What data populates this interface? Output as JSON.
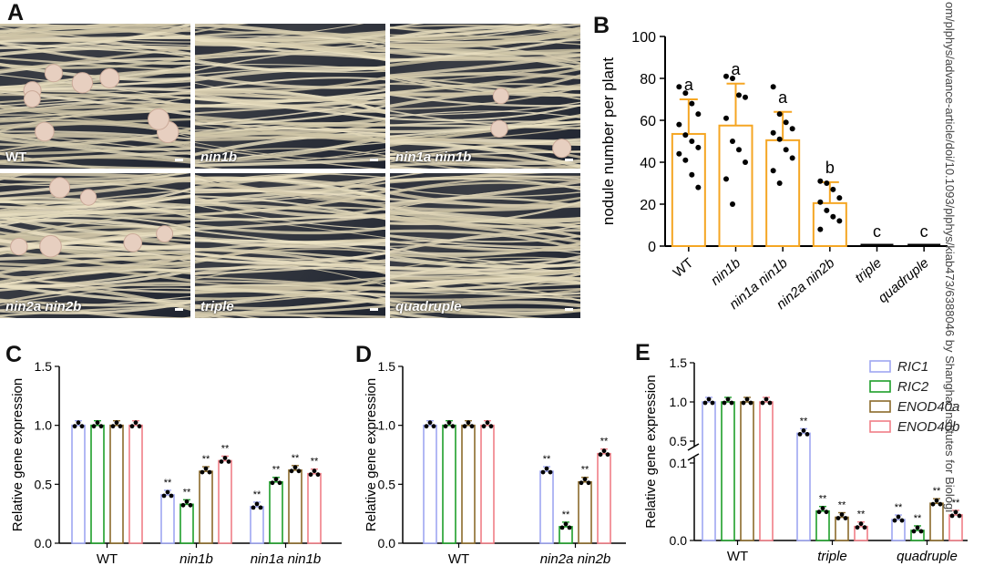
{
  "panels": {
    "A": "A",
    "B": "B",
    "C": "C",
    "D": "D",
    "E": "E"
  },
  "photos": [
    {
      "label": "WT",
      "italic": false
    },
    {
      "label": "nin1b",
      "italic": true
    },
    {
      "label": "nin1a nin1b",
      "italic": true
    },
    {
      "label": "nin2a nin2b",
      "italic": true
    },
    {
      "label": "triple",
      "italic": true
    },
    {
      "label": "quadruple",
      "italic": true
    }
  ],
  "watermark": "om/plphys/advance-article/doi/10.1093/plphys/kiab473/6388046 by Shanghai Institutes for Biologi",
  "chart_data": [
    {
      "id": "B",
      "type": "bar",
      "ylabel": "nodule number per plant",
      "ylim": [
        0,
        100
      ],
      "yticks": [
        0,
        20,
        40,
        60,
        80,
        100
      ],
      "categories": [
        "WT",
        "nin1b",
        "nin1a nin1b",
        "nin2a nin2b",
        "triple",
        "quadruple"
      ],
      "values": [
        53.5,
        57.5,
        50.5,
        20.5,
        0,
        0
      ],
      "errors": [
        16.5,
        20,
        13.5,
        10,
        0,
        0
      ],
      "letters": [
        "a",
        "a",
        "a",
        "b",
        "c",
        "c"
      ],
      "points": [
        [
          76,
          73,
          68,
          63,
          58,
          53,
          50,
          47,
          44,
          41,
          34,
          28
        ],
        [
          81,
          80,
          72,
          71,
          61,
          50,
          46,
          40,
          32,
          20
        ],
        [
          76,
          63,
          59,
          56,
          54,
          51,
          46,
          42,
          36,
          30
        ],
        [
          31,
          30,
          27,
          23,
          21,
          17,
          14,
          12,
          8
        ]
      ],
      "color": "#f5a623"
    },
    {
      "id": "C",
      "type": "bar",
      "ylabel": "Relative gene expression",
      "ylim": [
        0,
        1.5
      ],
      "yticks": [
        "0.0",
        "0.5",
        "1.0",
        "1.5"
      ],
      "groups": [
        "WT",
        "nin1b",
        "nin1a nin1b"
      ],
      "series": [
        {
          "name": "RIC1",
          "values": [
            1.0,
            0.41,
            0.31
          ]
        },
        {
          "name": "RIC2",
          "values": [
            1.0,
            0.33,
            0.52
          ]
        },
        {
          "name": "ENOD40a",
          "values": [
            1.0,
            0.61,
            0.62
          ]
        },
        {
          "name": "ENOD40b",
          "values": [
            1.0,
            0.7,
            0.59
          ]
        }
      ],
      "sig": [
        [
          "",
          "",
          "",
          ""
        ],
        [
          "**",
          "**",
          "**",
          "**"
        ],
        [
          "**",
          "**",
          "**",
          "**"
        ]
      ]
    },
    {
      "id": "D",
      "type": "bar",
      "ylabel": "Relative gene expression",
      "ylim": [
        0,
        1.5
      ],
      "yticks": [
        "0.0",
        "0.5",
        "1.0",
        "1.5"
      ],
      "groups": [
        "WT",
        "nin2a nin2b"
      ],
      "series": [
        {
          "name": "RIC1",
          "values": [
            1.0,
            0.61
          ]
        },
        {
          "name": "RIC2",
          "values": [
            1.0,
            0.14
          ]
        },
        {
          "name": "ENOD40a",
          "values": [
            1.0,
            0.52
          ]
        },
        {
          "name": "ENOD40b",
          "values": [
            1.0,
            0.76
          ]
        }
      ],
      "sig": [
        [
          "",
          "",
          "",
          ""
        ],
        [
          "**",
          "**",
          "**",
          "**"
        ]
      ]
    },
    {
      "id": "E",
      "type": "bar",
      "ylabel": "Relative gene expression",
      "axis_break": true,
      "yticks": [
        "0.0",
        "0.1",
        "0.5",
        "1.0",
        "1.5"
      ],
      "groups": [
        "WT",
        "triple",
        "quadruple"
      ],
      "series": [
        {
          "name": "RIC1",
          "values": [
            1.0,
            0.6,
            0.027
          ]
        },
        {
          "name": "RIC2",
          "values": [
            1.0,
            0.038,
            0.013
          ]
        },
        {
          "name": "ENOD40a",
          "values": [
            1.0,
            0.03,
            0.048
          ]
        },
        {
          "name": "ENOD40b",
          "values": [
            1.0,
            0.018,
            0.033
          ]
        }
      ],
      "sig": [
        [
          "",
          "",
          "",
          ""
        ],
        [
          "**",
          "**",
          "**",
          "**"
        ],
        [
          "**",
          "**",
          "**",
          "**"
        ]
      ],
      "legend": [
        "RIC1",
        "RIC2",
        "ENOD40a",
        "ENOD40b"
      ]
    }
  ],
  "colors": {
    "RIC1": "#9ea6f2",
    "RIC2": "#1e9e2a",
    "ENOD40a": "#8b6a2b",
    "ENOD40b": "#f07f87",
    "B": "#f5a623"
  }
}
